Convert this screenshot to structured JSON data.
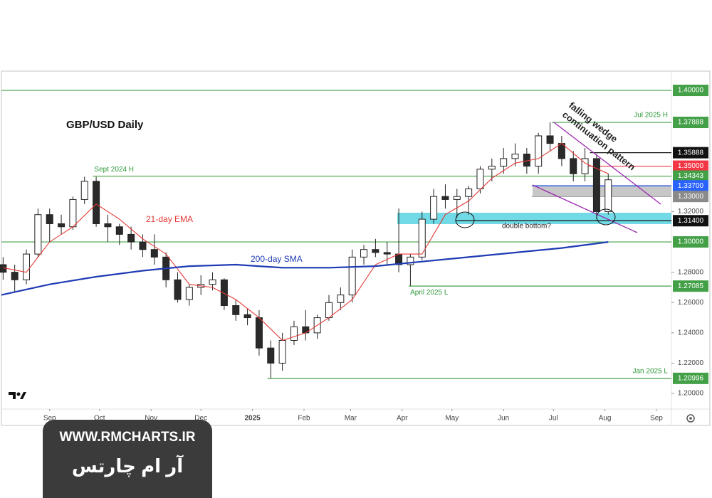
{
  "chart_data": {
    "type": "candlestick",
    "title": "GBP/USD Daily",
    "x": [
      -28,
      -21,
      -14,
      -7,
      0,
      7,
      14,
      21,
      28,
      35,
      42,
      49,
      56,
      63,
      70,
      77,
      84,
      91,
      98,
      105,
      112,
      119,
      126,
      133,
      140,
      147,
      154,
      161,
      168,
      175,
      182,
      189,
      196,
      203,
      210,
      217,
      224,
      231,
      238,
      245,
      252,
      259,
      266,
      273,
      280,
      287,
      294,
      301,
      308,
      315,
      322,
      329,
      336
    ],
    "open": [
      1.285,
      1.28,
      1.275,
      1.292,
      1.318,
      1.312,
      1.31,
      1.328,
      1.34,
      1.312,
      1.31,
      1.305,
      1.3,
      1.295,
      1.29,
      1.275,
      1.262,
      1.27,
      1.272,
      1.275,
      1.258,
      1.252,
      1.25,
      1.23,
      1.22,
      1.235,
      1.244,
      1.24,
      1.25,
      1.26,
      1.265,
      1.29,
      1.295,
      1.293,
      1.292,
      1.285,
      1.29,
      1.315,
      1.33,
      1.328,
      1.33,
      1.335,
      1.348,
      1.35,
      1.355,
      1.358,
      1.35,
      1.37,
      1.365,
      1.355,
      1.345,
      1.355,
      1.32
    ],
    "high": [
      1.29,
      1.285,
      1.295,
      1.322,
      1.322,
      1.318,
      1.33,
      1.343,
      1.343,
      1.318,
      1.312,
      1.31,
      1.305,
      1.305,
      1.293,
      1.28,
      1.272,
      1.278,
      1.28,
      1.276,
      1.262,
      1.256,
      1.255,
      1.235,
      1.24,
      1.248,
      1.255,
      1.252,
      1.265,
      1.27,
      1.295,
      1.298,
      1.302,
      1.3,
      1.322,
      1.292,
      1.32,
      1.335,
      1.338,
      1.335,
      1.337,
      1.35,
      1.355,
      1.362,
      1.365,
      1.362,
      1.372,
      1.3789,
      1.37,
      1.36,
      1.362,
      1.358,
      1.345
    ],
    "low": [
      1.275,
      1.267,
      1.272,
      1.29,
      1.3,
      1.305,
      1.308,
      1.325,
      1.31,
      1.3,
      1.298,
      1.295,
      1.29,
      1.285,
      1.27,
      1.26,
      1.258,
      1.265,
      1.268,
      1.255,
      1.248,
      1.245,
      1.225,
      1.21,
      1.215,
      1.232,
      1.235,
      1.236,
      1.248,
      1.255,
      1.26,
      1.285,
      1.29,
      1.285,
      1.28,
      1.271,
      1.288,
      1.312,
      1.322,
      1.316,
      1.318,
      1.332,
      1.34,
      1.345,
      1.35,
      1.345,
      1.345,
      1.36,
      1.35,
      1.34,
      1.34,
      1.315,
      1.318
    ],
    "close": [
      1.28,
      1.275,
      1.292,
      1.318,
      1.312,
      1.31,
      1.328,
      1.34,
      1.312,
      1.31,
      1.305,
      1.3,
      1.295,
      1.29,
      1.275,
      1.262,
      1.27,
      1.272,
      1.275,
      1.258,
      1.252,
      1.25,
      1.23,
      1.22,
      1.235,
      1.244,
      1.24,
      1.25,
      1.26,
      1.265,
      1.29,
      1.295,
      1.293,
      1.292,
      1.285,
      1.29,
      1.315,
      1.33,
      1.328,
      1.33,
      1.335,
      1.348,
      1.35,
      1.355,
      1.358,
      1.35,
      1.37,
      1.365,
      1.355,
      1.345,
      1.355,
      1.32,
      1.341
    ],
    "up_color": "#ffffff",
    "down_color": "#2a2a2a",
    "xlim": [
      -29,
      374
    ],
    "ylim": [
      1.1897,
      1.4127
    ],
    "xticks": [
      {
        "value": 0,
        "label": "Sep"
      },
      {
        "value": 30,
        "label": "Oct"
      },
      {
        "value": 61,
        "label": "Nov"
      },
      {
        "value": 91,
        "label": "Dec"
      },
      {
        "value": 122,
        "label": "2025"
      },
      {
        "value": 153,
        "label": "Feb"
      },
      {
        "value": 181,
        "label": "Mar"
      },
      {
        "value": 212,
        "label": "Apr"
      },
      {
        "value": 242,
        "label": "May"
      },
      {
        "value": 273,
        "label": "Jun"
      },
      {
        "value": 303,
        "label": "Jul"
      },
      {
        "value": 334,
        "label": "Aug"
      },
      {
        "value": 365,
        "label": "Sep"
      }
    ],
    "yticks": [
      {
        "value": 1.2,
        "label": "1.20000"
      },
      {
        "value": 1.22,
        "label": "1.22000"
      },
      {
        "value": 1.24,
        "label": "1.24000"
      },
      {
        "value": 1.26,
        "label": "1.26000"
      },
      {
        "value": 1.28,
        "label": "1.28000"
      },
      {
        "value": 1.32,
        "label": "1.32000"
      }
    ],
    "series": [
      {
        "name": "21-day EMA",
        "color": "#e53935",
        "x": [
          -28,
          -14,
          0,
          14,
          28,
          42,
          56,
          70,
          84,
          98,
          112,
          126,
          140,
          154,
          168,
          182,
          196,
          210,
          224,
          238,
          252,
          266,
          280,
          294,
          308,
          322,
          336
        ],
        "values": [
          1.283,
          1.28,
          1.3,
          1.31,
          1.325,
          1.315,
          1.302,
          1.292,
          1.272,
          1.27,
          1.262,
          1.25,
          1.235,
          1.24,
          1.25,
          1.262,
          1.285,
          1.292,
          1.292,
          1.318,
          1.327,
          1.342,
          1.352,
          1.355,
          1.365,
          1.352,
          1.345
        ]
      },
      {
        "name": "200-day SMA",
        "color": "#1e3bb3",
        "x": [
          -29,
          0,
          28,
          56,
          84,
          112,
          140,
          168,
          196,
          224,
          252,
          280,
          308,
          336
        ],
        "values": [
          1.265,
          1.272,
          1.277,
          1.281,
          1.284,
          1.285,
          1.283,
          1.283,
          1.284,
          1.287,
          1.29,
          1.293,
          1.296,
          1.3
        ]
      }
    ],
    "levels": [
      {
        "value": 1.4,
        "label": "1.40000",
        "color": "#43a047",
        "start": -29
      },
      {
        "value": 1.37888,
        "label": "1.37888",
        "color": "#43a047",
        "start": 302,
        "note": "Jul 2025 H"
      },
      {
        "value": 1.35888,
        "label": "1.35888",
        "color": "#111111",
        "start": 325
      },
      {
        "value": 1.35,
        "label": "1.35000",
        "color": "#f23645",
        "start": 323
      },
      {
        "value": 1.34343,
        "label": "1.34343",
        "color": "#43a047",
        "start": 26,
        "note": "Sept 2024 H"
      },
      {
        "value": 1.337,
        "label": "1.33700",
        "color": "#2962ff",
        "start": 290
      },
      {
        "value": 1.33,
        "label": "1.33000",
        "color": "#8a8a8a",
        "start": 290
      },
      {
        "value": 1.314,
        "label": "1.31400",
        "color": "#111111",
        "start": 244
      },
      {
        "value": 1.3,
        "label": "1.30000",
        "color": "#43a047",
        "start": -29
      },
      {
        "value": 1.27085,
        "label": "1.27085",
        "color": "#43a047",
        "start": 216,
        "note": "April 2025 L"
      },
      {
        "value": 1.20996,
        "label": "1.20996",
        "color": "#43a047",
        "start": 131,
        "note": "Jan 2025 L"
      }
    ],
    "annotations": [
      "double bottom?",
      "falling wedge",
      "continuation pattern"
    ]
  },
  "watermark": {
    "url": "WWW.RMCHARTS.IR",
    "name": "آر ام چارتس"
  }
}
